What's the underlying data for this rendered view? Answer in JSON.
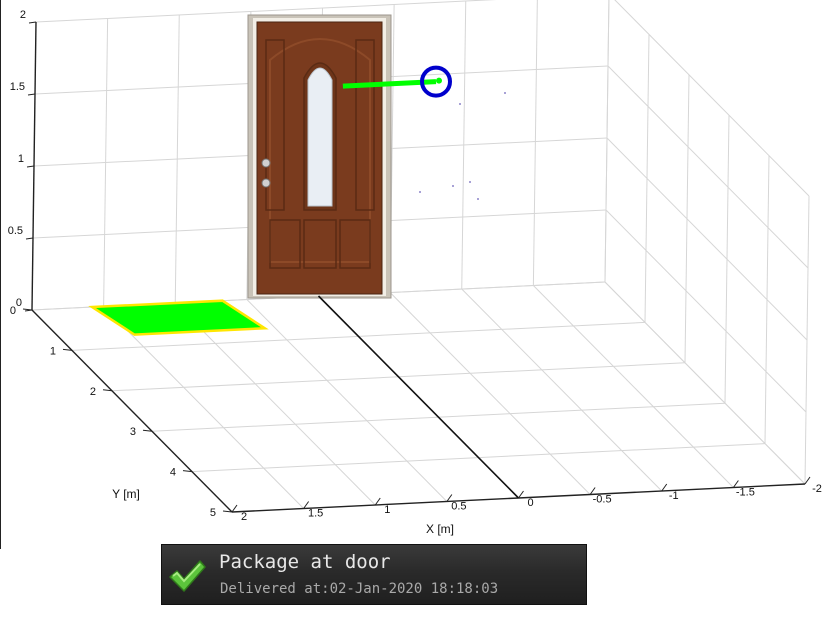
{
  "chart_data": {
    "type": "scatter",
    "title": "",
    "xlabel": "X [m]",
    "ylabel": "Y [m]",
    "zlabel": "",
    "xlim": [
      -2,
      2
    ],
    "ylim": [
      0,
      5
    ],
    "zlim": [
      0,
      2
    ],
    "x_ticks": [
      "2",
      "1.5",
      "1",
      "0.5",
      "0",
      "-0.5",
      "-1",
      "-1.5",
      "-2"
    ],
    "y_ticks": [
      "0",
      "1",
      "2",
      "3",
      "4",
      "5"
    ],
    "z_ticks": [
      "0",
      "0.5",
      "1",
      "1.5",
      "2"
    ],
    "grid": true,
    "door": {
      "object": "door",
      "color": "#7a3b1e"
    },
    "delivery_zone": {
      "color": "#00ff00",
      "border_color": "#ffe600"
    },
    "package_track": {
      "start": {
        "x": -0.8,
        "y": 0,
        "z": 1.45
      },
      "end": {
        "x": -0.15,
        "y": 0,
        "z": 1.45
      },
      "color": "#00ff00",
      "marker_color": "#0000cc"
    }
  },
  "notification": {
    "title": "Package at door",
    "subtitle": "Delivered at:02-Jan-2020 18:18:03",
    "icon": "check-icon",
    "accent_color": "#58c23a"
  }
}
